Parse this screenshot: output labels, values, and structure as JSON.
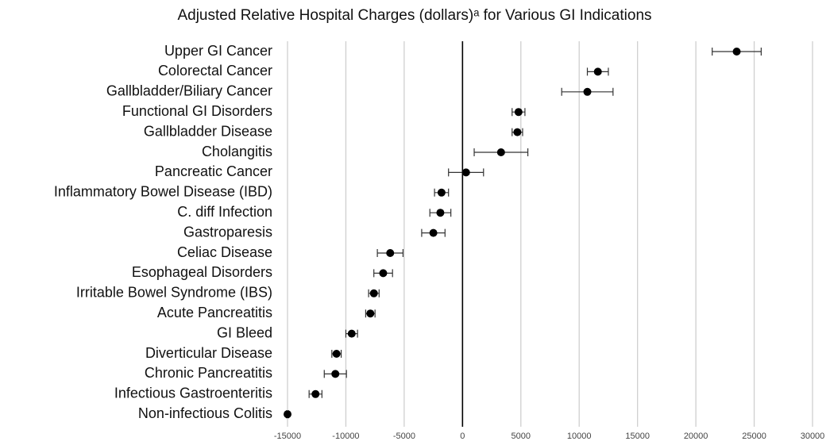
{
  "chart_data": {
    "type": "errorbar",
    "title": "Adjusted Relative Hospital Charges (dollars)ᵃ for Various GI Indications",
    "categories": [
      "Upper GI Cancer",
      "Colorectal Cancer",
      "Gallbladder/Biliary Cancer",
      "Functional GI Disorders",
      "Gallbladder Disease",
      "Cholangitis",
      "Pancreatic Cancer",
      "Inflammatory Bowel Disease (IBD)",
      "C. diff Infection",
      "Gastroparesis",
      "Celiac Disease",
      "Esophageal Disorders",
      "Irritable Bowel Syndrome (IBS)",
      "Acute Pancreatitis",
      "GI Bleed",
      "Diverticular Disease",
      "Chronic Pancreatitis",
      "Infectious Gastroenteritis",
      "Non-infectious Colitis"
    ],
    "values": [
      23500,
      11600,
      10700,
      4800,
      4700,
      3300,
      300,
      -1800,
      -1900,
      -2500,
      -6200,
      -6800,
      -7600,
      -7900,
      -9500,
      -10800,
      -10900,
      -12600,
      -15000
    ],
    "errors": [
      2100,
      900,
      2200,
      550,
      450,
      2300,
      1500,
      600,
      900,
      1000,
      1100,
      800,
      450,
      400,
      500,
      400,
      950,
      550,
      100
    ],
    "color": "#000000",
    "xlim": [
      -15000,
      30000
    ],
    "xticks": [
      -15000,
      -10000,
      -5000,
      0,
      5000,
      10000,
      15000,
      20000,
      25000,
      30000
    ],
    "grid": true
  }
}
